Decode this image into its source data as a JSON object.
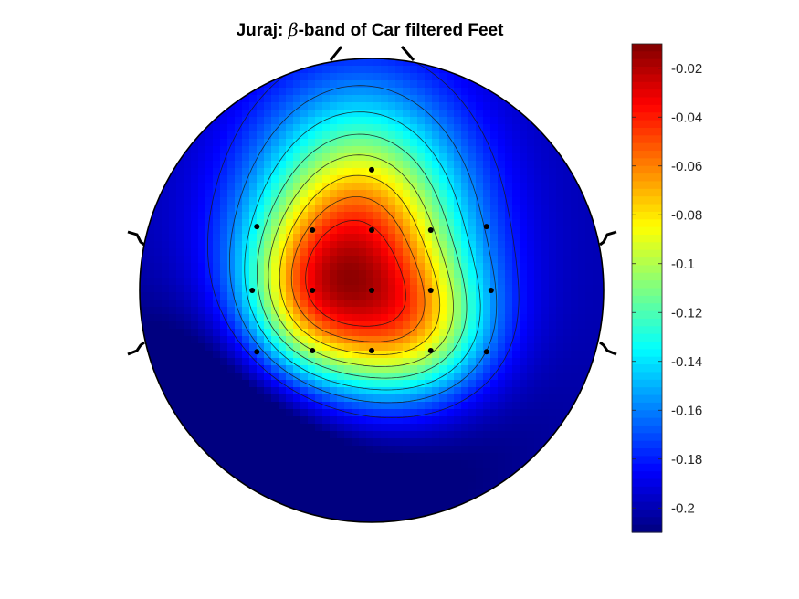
{
  "chart_data": {
    "type": "heatmap",
    "title_prefix": "Juraj: ",
    "title_symbol": "β",
    "title_suffix": "-band of Car filtered Feet",
    "colormap": "jet",
    "clim": [
      -0.21,
      -0.01
    ],
    "colorbar_ticks": [
      -0.02,
      -0.04,
      -0.06,
      -0.08,
      -0.1,
      -0.12,
      -0.14,
      -0.16,
      -0.18,
      -0.2
    ],
    "colorbar_tick_labels": [
      "-0.02",
      "-0.04",
      "-0.06",
      "-0.08",
      "-0.1",
      "-0.12",
      "-0.14",
      "-0.16",
      "-0.18",
      "-0.2"
    ],
    "contour_levels": [
      -0.04,
      -0.06,
      -0.08,
      -0.1,
      -0.12,
      -0.14,
      -0.16,
      -0.18
    ],
    "baseline_value": -0.2,
    "sources": [
      {
        "x": -0.05,
        "y": -0.2,
        "sx": 0.32,
        "sy": 0.42,
        "amp": 0.15
      },
      {
        "x": 0.24,
        "y": 0.18,
        "sx": 0.22,
        "sy": 0.22,
        "amp": 0.06
      },
      {
        "x": -0.08,
        "y": 0.25,
        "sx": 0.26,
        "sy": 0.3,
        "amp": 0.03
      },
      {
        "x": -0.3,
        "y": 0.05,
        "sx": 0.2,
        "sy": 0.24,
        "amp": 0.05
      },
      {
        "x": -0.05,
        "y": 0.55,
        "sx": 0.45,
        "sy": 0.35,
        "amp": -0.03
      },
      {
        "x": -0.75,
        "y": 0.7,
        "sx": 0.45,
        "sy": 0.35,
        "amp": -0.04
      }
    ],
    "electrodes": [
      {
        "x": 0.0,
        "y": -0.52
      },
      {
        "x": -0.495,
        "y": -0.275
      },
      {
        "x": -0.255,
        "y": -0.26
      },
      {
        "x": 0.0,
        "y": -0.26
      },
      {
        "x": 0.255,
        "y": -0.26
      },
      {
        "x": 0.495,
        "y": -0.275
      },
      {
        "x": -0.515,
        "y": 0.0
      },
      {
        "x": -0.255,
        "y": 0.0
      },
      {
        "x": 0.0,
        "y": 0.0
      },
      {
        "x": 0.255,
        "y": 0.0
      },
      {
        "x": 0.515,
        "y": 0.0
      },
      {
        "x": -0.495,
        "y": 0.265
      },
      {
        "x": -0.255,
        "y": 0.26
      },
      {
        "x": 0.0,
        "y": 0.26
      },
      {
        "x": 0.255,
        "y": 0.26
      },
      {
        "x": 0.495,
        "y": 0.265
      }
    ],
    "grid": false,
    "legend": "colorbar-right"
  }
}
